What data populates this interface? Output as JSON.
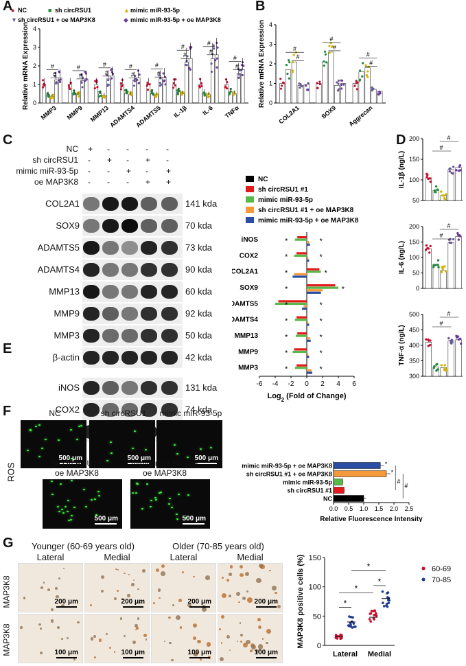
{
  "panels": {
    "A": "A",
    "B": "B",
    "C": "C",
    "D": "D",
    "E": "E",
    "F": "F",
    "G": "G"
  },
  "colors": {
    "nc": "#c8102e",
    "sh": "#1e8a3a",
    "mimic": "#d4b100",
    "oe1": "#6b5b95",
    "oe2": "#6a3d9a",
    "black": "#000000",
    "red": "#e31a1c",
    "green": "#57b947",
    "orange": "#f59a3b",
    "blue": "#2a4ea3",
    "g60": "#c8102e",
    "g70": "#1f3a93"
  },
  "chart_a": {
    "legend": [
      "NC",
      "sh circRSU1",
      "mimic miR-93-5p",
      "sh circRSU1 + oe MAP3K8",
      "mimic miR-93-5p + oe MAP3K8"
    ],
    "ylabel": "Relative mRNA Expression",
    "ylim": [
      0,
      4
    ],
    "yticks": [
      "0",
      "1",
      "2",
      "3",
      "4"
    ],
    "categories": [
      "MMP3",
      "MMP9",
      "MMP13",
      "ADAMTS4",
      "ADAMTS5",
      "IL-1β",
      "IL-6",
      "TNFα"
    ],
    "series": [
      {
        "values": [
          1.0,
          1.0,
          1.0,
          1.0,
          1.0,
          1.0,
          1.0,
          1.0
        ]
      },
      {
        "values": [
          0.45,
          0.55,
          0.5,
          0.55,
          0.55,
          0.6,
          0.55,
          0.6
        ]
      },
      {
        "values": [
          0.35,
          0.45,
          0.4,
          0.45,
          0.45,
          0.5,
          0.45,
          0.5
        ]
      },
      {
        "values": [
          1.25,
          1.2,
          1.3,
          1.25,
          1.3,
          2.2,
          2.4,
          1.6
        ]
      },
      {
        "values": [
          1.35,
          1.3,
          1.45,
          1.35,
          1.4,
          2.4,
          2.6,
          1.8
        ]
      }
    ],
    "sig": "#"
  },
  "chart_b": {
    "ylabel": "Relative mRNA Expression",
    "ylim": [
      0,
      4
    ],
    "yticks": [
      "0",
      "1",
      "2",
      "3",
      "4"
    ],
    "categories": [
      "COL2A1",
      "SOX9",
      "Aggrecan"
    ],
    "series": [
      {
        "values": [
          1.0,
          1.0,
          1.0
        ]
      },
      {
        "values": [
          1.7,
          2.1,
          1.6
        ]
      },
      {
        "values": [
          2.1,
          2.6,
          1.8
        ]
      },
      {
        "values": [
          0.9,
          0.9,
          0.7
        ]
      },
      {
        "values": [
          0.95,
          1.0,
          0.6
        ]
      }
    ],
    "sig": "#"
  },
  "blot": {
    "header_labels": [
      "NC",
      "sh circRSU1",
      "mimic miR-93-5p",
      "oe MAP3K8"
    ],
    "header_marks": [
      [
        "+",
        "-",
        "-",
        "-",
        "-"
      ],
      [
        "-",
        "+",
        "-",
        "+",
        "-"
      ],
      [
        "-",
        "-",
        "+",
        "-",
        "+"
      ],
      [
        "-",
        "-",
        "-",
        "+",
        "+"
      ]
    ],
    "rows_c": [
      {
        "name": "COL2A1",
        "kda": "141 kda"
      },
      {
        "name": "SOX9",
        "kda": "70 kda"
      },
      {
        "name": "ADAMTS5",
        "kda": "73 kda"
      },
      {
        "name": "ADAMTS4",
        "kda": "90 kda"
      },
      {
        "name": "MMP13",
        "kda": "60 kda"
      },
      {
        "name": "MMP9",
        "kda": "92 kda"
      },
      {
        "name": "MMP3",
        "kda": "50 kda"
      },
      {
        "name": "β-actin",
        "kda": "42 kda"
      }
    ],
    "rows_e": [
      {
        "name": "iNOS",
        "kda": "131 kda"
      },
      {
        "name": "COX2",
        "kda": "74 kda"
      },
      {
        "name": "β-actin",
        "kda": "42 kda"
      }
    ]
  },
  "chart_c": {
    "type": "bar",
    "legend": [
      "NC",
      "sh circRSU1 #1",
      "mimic miR-93-5p",
      "sh circRSU1 #1 + oe MAP3K8",
      "mimic miR-93-5p + oe MAP3K8"
    ],
    "xlabel": "Log",
    "xlabel_sub": "2",
    "xlabel_tail": " (Fold of Change)",
    "xlim": [
      -6,
      6
    ],
    "xticks": [
      "-6",
      "-4",
      "-2",
      "0",
      "2",
      "4",
      "6"
    ],
    "categories": [
      "iNOS",
      "COX2",
      "COL2A1",
      "SOX9",
      "ADAMTS5",
      "ADAMTS4",
      "MMP13",
      "MMP9",
      "MMP3"
    ],
    "series": [
      {
        "values": [
          0,
          0,
          0,
          0,
          0,
          0,
          0,
          0,
          0
        ]
      },
      {
        "values": [
          -1.2,
          -1.3,
          1.6,
          3.6,
          -3.6,
          -1.3,
          -1.2,
          -1.6,
          -1.3
        ]
      },
      {
        "values": [
          -1.5,
          -1.6,
          1.8,
          4.0,
          -4.0,
          -1.5,
          -1.4,
          -1.8,
          -1.5
        ]
      },
      {
        "values": [
          0.3,
          0.2,
          -1.6,
          2.0,
          -0.4,
          0.2,
          0.4,
          0.2,
          0.6
        ]
      },
      {
        "values": [
          0.4,
          0.3,
          -1.8,
          1.8,
          -0.6,
          0.3,
          0.5,
          0.3,
          0.7
        ]
      }
    ],
    "sig": "*"
  },
  "chart_d": [
    {
      "ylabel": "IL-1β (ng/L)",
      "yticks": [
        "50",
        "100",
        "150",
        "200"
      ],
      "ylim": [
        50,
        200
      ],
      "values": [
        105,
        75,
        62,
        125,
        130
      ],
      "sig": "#"
    },
    {
      "ylabel": "IL-6 (ng/L)",
      "yticks": [
        "0",
        "50",
        "100",
        "150",
        "200"
      ],
      "ylim": [
        0,
        200
      ],
      "values": [
        128,
        78,
        58,
        148,
        168
      ],
      "sig": "#"
    },
    {
      "ylabel": "TNF-α (ng/L)",
      "yticks": [
        "300",
        "350",
        "400",
        "450",
        "500"
      ],
      "ylim": [
        300,
        500
      ],
      "values": [
        410,
        330,
        328,
        415,
        418
      ],
      "sig": "#"
    }
  ],
  "ros": {
    "side_label": "ROS",
    "images": [
      {
        "label": "NC",
        "scale": "500 μm"
      },
      {
        "label": "sh circRSU1",
        "scale": "500 μm"
      },
      {
        "label": "mimic miR-93-5p",
        "scale": "500 μm"
      },
      {
        "label": "sh circRSU1+",
        "label2": "oe MAP3K8",
        "scale": "500 μm"
      },
      {
        "label": "mimic miR-93-5p+",
        "label2": "oe MAP3K8",
        "scale": "500 μm"
      }
    ]
  },
  "chart_f": {
    "type": "bar",
    "categories": [
      "mimic miR-93-5p + oe MAP3K8",
      "sh circRSU1 #1 + oe MAP3K8",
      "mimic miR-93-5p",
      "sh circRSU1 #1",
      "NC"
    ],
    "values": [
      1.55,
      1.75,
      0.3,
      0.35,
      1.0
    ],
    "xlim": [
      0,
      2.5
    ],
    "xticks": [
      "0.0",
      "0.5",
      "1.0",
      "1.5",
      "2.0",
      "2.5"
    ],
    "xlabel": "Relative Fluorescence Intensity",
    "sig": [
      "*",
      "*",
      "#",
      "#"
    ]
  },
  "histology": {
    "side_label": "MAP3K8",
    "group_young": "Younger (60-69 years old)",
    "group_old": "Older (70-85 years old)",
    "sub": [
      "Lateral",
      "Medial",
      "Lateral",
      "Medial"
    ],
    "scale_top": "200 μm",
    "scale_bottom": "100 μm"
  },
  "chart_g": {
    "type": "scatter",
    "ylabel": "MAP3K8 positive cells  (%)",
    "ylim": [
      0,
      150
    ],
    "yticks": [
      "0",
      "50",
      "100",
      "150"
    ],
    "categories": [
      "Lateral",
      "Medial"
    ],
    "legend": [
      "60-69",
      "70-85"
    ],
    "means": [
      [
        15,
        40
      ],
      [
        48,
        80
      ]
    ],
    "sig": "*"
  }
}
